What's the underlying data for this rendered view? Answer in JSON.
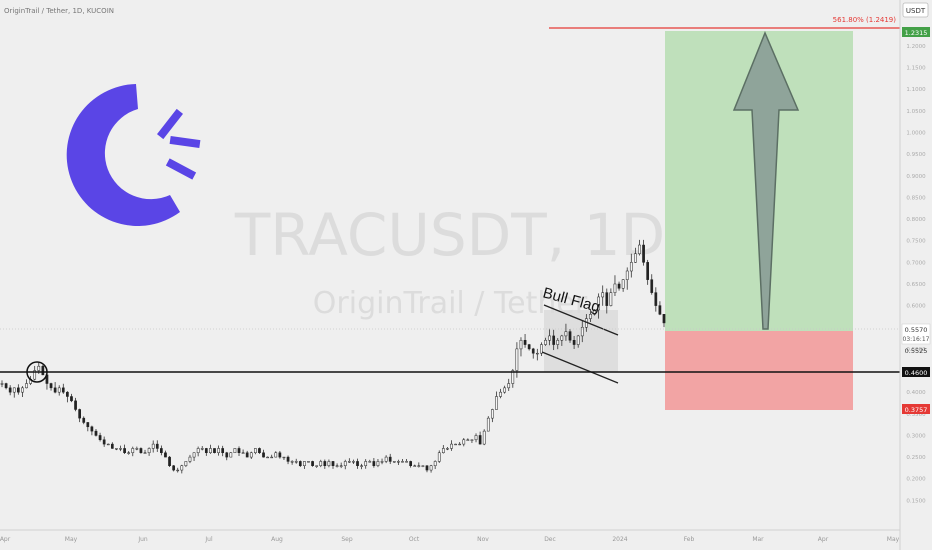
{
  "chart_data": {
    "type": "candlestick",
    "title": "OriginTrail / Tether, 1D, KUCOIN",
    "watermark_symbol": "TRACUSDT, 1D",
    "watermark_name": "OriginTrail / Tether",
    "currency": "USDT",
    "ylim": [
      0.1,
      1.26
    ],
    "price_axis_ticks": [
      "1.2000",
      "1.1500",
      "1.1000",
      "1.0500",
      "1.0000",
      "0.9500",
      "0.9000",
      "0.8500",
      "0.8000",
      "0.7500",
      "0.7000",
      "0.6500",
      "0.6000",
      "0.5000",
      "0.4500",
      "0.4000",
      "0.3500",
      "0.3000",
      "0.2500",
      "0.2000",
      "0.1500"
    ],
    "time_axis_labels": [
      "Apr",
      "May",
      "Jun",
      "Jul",
      "Aug",
      "Sep",
      "Oct",
      "Nov",
      "Dec",
      "2024",
      "Feb",
      "Mar",
      "Apr",
      "May"
    ],
    "price_labels": {
      "target": "1.2315",
      "last": "0.5570",
      "countdown": "03:16:17",
      "aux": "0.5525",
      "support": "0.4600",
      "stop": "0.3757"
    },
    "levels": {
      "target": 1.2315,
      "entry": 0.557,
      "support": 0.46,
      "stop": 0.3757,
      "fib": 1.2419
    },
    "fib_label": "561.80% (1.2419)",
    "annotation": "Bull Flag",
    "series": [
      {
        "month": "Apr",
        "points": [
          0.42,
          0.41,
          0.4,
          0.41,
          0.4,
          0.41,
          0.42,
          0.43,
          0.45,
          0.46,
          0.44,
          0.42,
          0.41,
          0.4,
          0.41,
          0.4,
          0.39
        ]
      },
      {
        "month": "May",
        "points": [
          0.38,
          0.36,
          0.34,
          0.33,
          0.32,
          0.31,
          0.3,
          0.29,
          0.28,
          0.28,
          0.27,
          0.27,
          0.27,
          0.26,
          0.26,
          0.27,
          0.27,
          0.26
        ]
      },
      {
        "month": "Jun",
        "points": [
          0.26,
          0.27,
          0.28,
          0.27,
          0.26,
          0.25,
          0.23,
          0.22,
          0.22,
          0.23,
          0.24,
          0.25,
          0.26,
          0.27,
          0.27,
          0.26
        ]
      },
      {
        "month": "Jul",
        "points": [
          0.27,
          0.26,
          0.27,
          0.26,
          0.25,
          0.26,
          0.27,
          0.26,
          0.26,
          0.25,
          0.26,
          0.27,
          0.26,
          0.25,
          0.25,
          0.25
        ]
      },
      {
        "month": "Aug",
        "points": [
          0.26,
          0.25,
          0.25,
          0.24,
          0.24,
          0.24,
          0.23,
          0.24,
          0.24,
          0.23,
          0.23,
          0.24,
          0.23,
          0.24,
          0.23,
          0.23
        ]
      },
      {
        "month": "Sep",
        "points": [
          0.23,
          0.24,
          0.24,
          0.24,
          0.23,
          0.23,
          0.24,
          0.24,
          0.23,
          0.24,
          0.24,
          0.25,
          0.24,
          0.24,
          0.24,
          0.24
        ]
      },
      {
        "month": "Oct",
        "points": [
          0.24,
          0.23,
          0.23,
          0.23,
          0.23,
          0.22,
          0.23,
          0.24,
          0.26,
          0.27,
          0.27,
          0.28,
          0.28,
          0.28,
          0.29,
          0.29
        ]
      },
      {
        "month": "Nov",
        "points": [
          0.29,
          0.3,
          0.28,
          0.31,
          0.34,
          0.36,
          0.39,
          0.4,
          0.41,
          0.42,
          0.45,
          0.5,
          0.52,
          0.51,
          0.5,
          0.49,
          0.49
        ]
      },
      {
        "month": "Dec",
        "points": [
          0.51,
          0.52,
          0.53,
          0.51,
          0.52,
          0.53,
          0.54,
          0.52,
          0.51,
          0.53,
          0.55,
          0.57,
          0.58,
          0.59,
          0.62,
          0.63,
          0.6
        ]
      },
      {
        "month": "2024",
        "points": [
          0.63,
          0.65,
          0.64,
          0.66,
          0.68,
          0.7,
          0.72,
          0.74,
          0.7,
          0.66,
          0.63,
          0.6,
          0.58,
          0.56
        ]
      }
    ]
  }
}
